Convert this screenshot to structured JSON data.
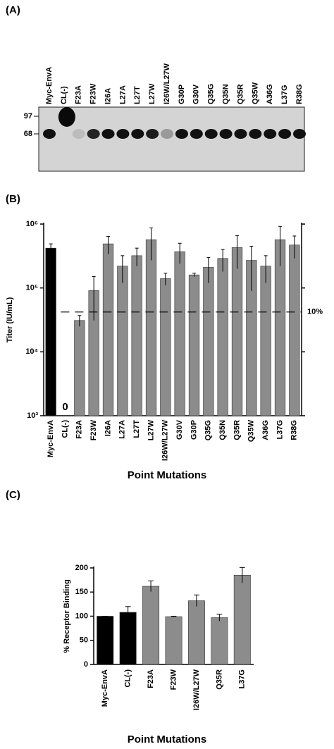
{
  "blot": {
    "panel_label": "(A)",
    "lanes": [
      "Myc-EnvA",
      "CL(-)",
      "F23A",
      "F23W",
      "I26A",
      "L27A",
      "L27T",
      "L27W",
      "I26W/L27W",
      "G30P",
      "G30V",
      "Q35G",
      "Q35N",
      "Q35R",
      "Q35W",
      "A36G",
      "L37G",
      "R38G"
    ],
    "markers": [
      "97",
      "68"
    ]
  },
  "chart_data": [
    {
      "type": "bar",
      "panel_label": "(B)",
      "y_label": "Titer (IU/mL)",
      "x_label": "Point Mutations",
      "categories": [
        "Myc-EnvA",
        "CL(-)",
        "F23A",
        "F23W",
        "I26A",
        "L27A",
        "L27T",
        "L27W",
        "I26W/L27W",
        "G30V",
        "G30P",
        "Q35G",
        "Q35N",
        "Q35R",
        "Q35W",
        "A36G",
        "L37G",
        "R38G"
      ],
      "series": [
        {
          "values": [
            420000,
            0,
            31000,
            91000,
            490000,
            220000,
            320000,
            570000,
            140000,
            370000,
            160000,
            210000,
            290000,
            430000,
            270000,
            220000,
            570000,
            470000
          ],
          "errors": [
            70000,
            0,
            6000,
            60000,
            150000,
            100000,
            100000,
            300000,
            30000,
            130000,
            10000,
            90000,
            110000,
            230000,
            180000,
            100000,
            350000,
            180000
          ],
          "colors": [
            "#000000",
            "#000000",
            "#8c8c8c",
            "#8c8c8c",
            "#8c8c8c",
            "#8c8c8c",
            "#8c8c8c",
            "#8c8c8c",
            "#8c8c8c",
            "#8c8c8c",
            "#8c8c8c",
            "#8c8c8c",
            "#8c8c8c",
            "#8c8c8c",
            "#8c8c8c",
            "#8c8c8c",
            "#8c8c8c",
            "#8c8c8c"
          ]
        }
      ],
      "log_scale": true,
      "ylim": [
        1000,
        1000000
      ],
      "yticks": [
        {
          "value": 1000,
          "label": "10³"
        },
        {
          "value": 10000,
          "label": "10⁴"
        },
        {
          "value": 100000,
          "label": "10⁵"
        },
        {
          "value": 1000000,
          "label": "10⁶"
        }
      ],
      "reference_line": {
        "value": 42000,
        "label": "10%"
      }
    },
    {
      "type": "bar",
      "panel_label": "(C)",
      "y_label": "% Receptor Binding",
      "x_label": "Point Mutations",
      "categories": [
        "Myc-EnvA",
        "CL(-)",
        "F23A",
        "F23W",
        "I26W/L27W",
        "Q35R",
        "L37G"
      ],
      "series": [
        {
          "values": [
            100,
            108,
            162,
            99,
            132,
            97,
            185
          ],
          "errors": [
            0,
            12,
            11,
            1,
            12,
            7,
            16
          ],
          "colors": [
            "#000000",
            "#000000",
            "#8c8c8c",
            "#8c8c8c",
            "#8c8c8c",
            "#8c8c8c",
            "#8c8c8c"
          ]
        }
      ],
      "log_scale": false,
      "ylim": [
        0,
        200
      ],
      "yticks": [
        0,
        50,
        100,
        150,
        200
      ]
    }
  ]
}
